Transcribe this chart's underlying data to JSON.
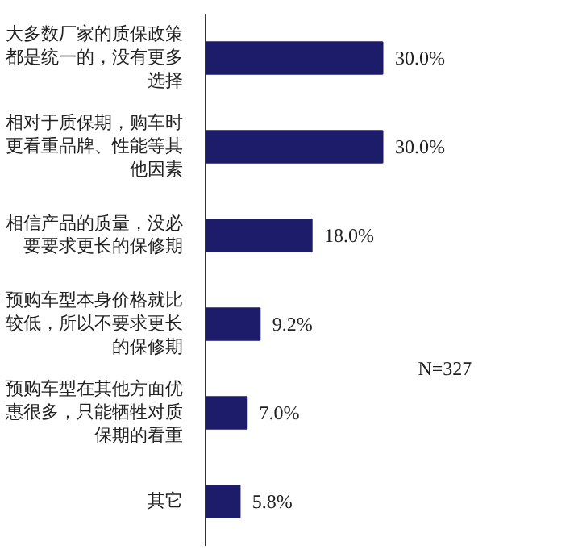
{
  "chart_data": {
    "type": "bar",
    "orientation": "horizontal",
    "tick_labels": "y",
    "categories": [
      "大多数厂家的质保政策都是统一的，没有更多选择",
      "相对于质保期，购车时更看重品牌、性能等其他因素",
      "相信产品的质量，没必要要求更长的保修期",
      "预购车型本身价格就比较低，所以不要求更长的保修期",
      "预购车型在其他方面优惠很多，只能牺牲对质保期的看重",
      "其它"
    ],
    "values": [
      30.0,
      30.0,
      18.0,
      9.2,
      7.0,
      5.8
    ],
    "value_labels": [
      "30.0%",
      "30.0%",
      "18.0%",
      "9.2%",
      "7.0%",
      "5.8%"
    ],
    "color": "#1c1c6b",
    "annotations": [
      "N=327"
    ],
    "grid": false
  }
}
